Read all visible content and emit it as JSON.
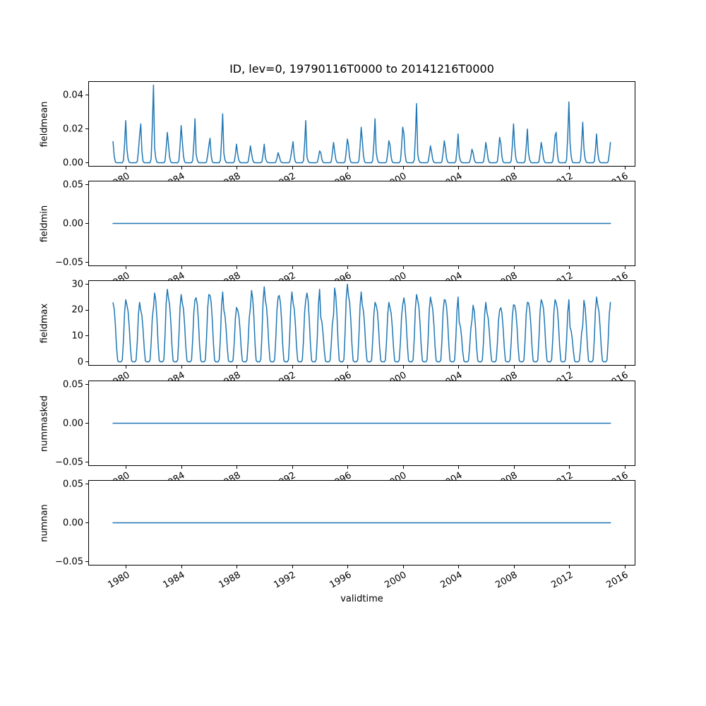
{
  "figure": {
    "title": "ID, lev=0, 19790116T0000 to 20141216T0000",
    "xlabel": "validtime",
    "line_color": "#1f77b4",
    "background": "#ffffff"
  },
  "xaxis": {
    "xlim": [
      1977.25,
      2016.76
    ],
    "ticks": [
      1980,
      1984,
      1988,
      1992,
      1996,
      2000,
      2004,
      2008,
      2012,
      2016
    ],
    "tick_labels": [
      "1980",
      "1984",
      "1988",
      "1992",
      "1996",
      "2000",
      "2004",
      "2008",
      "2012",
      "2016"
    ],
    "rotation_deg": 30
  },
  "chart_data": [
    {
      "type": "line",
      "ylabel": "fieldmean",
      "ylim": [
        -0.0023,
        0.0483
      ],
      "yticks": [
        0.0,
        0.02,
        0.04
      ],
      "ytick_labels": [
        "0.00",
        "0.02",
        "0.04"
      ],
      "x_start": 1979.04,
      "x_end": 2014.96,
      "pattern": "seasonal",
      "year_start": 1979,
      "monthly_shape": [
        0.5,
        0.15,
        0.02,
        0,
        0,
        0,
        0,
        0,
        0,
        0.05,
        0.45,
        1.0
      ],
      "annual_peaks": [
        0.025,
        0.016,
        0.046,
        0.018,
        0.022,
        0.026,
        0.01,
        0.029,
        0.011,
        0.01,
        0.011,
        0.006,
        0.008,
        0.025,
        0.007,
        0.012,
        0.014,
        0.021,
        0.026,
        0.013,
        0.021,
        0.035,
        0.01,
        0.013,
        0.017,
        0.008,
        0.012,
        0.015,
        0.023,
        0.02,
        0.012,
        0.016,
        0.036,
        0.024,
        0.017,
        0.012
      ]
    },
    {
      "type": "line",
      "ylabel": "fieldmin",
      "ylim": [
        -0.055,
        0.055
      ],
      "yticks": [
        -0.05,
        0.0,
        0.05
      ],
      "ytick_labels": [
        "−0.05",
        "0.00",
        "0.05"
      ],
      "x_start": 1979.04,
      "x_end": 2014.96,
      "pattern": "constant",
      "value": 0.0
    },
    {
      "type": "line",
      "ylabel": "fieldmax",
      "ylim": [
        -1.5,
        31.5
      ],
      "yticks": [
        0,
        10,
        20,
        30
      ],
      "ytick_labels": [
        "0",
        "10",
        "20",
        "30"
      ],
      "x_start": 1979.04,
      "x_end": 2014.96,
      "pattern": "seasonal",
      "year_start": 1979,
      "monthly_shape": [
        0.95,
        0.85,
        0.6,
        0.25,
        0.02,
        0,
        0,
        0,
        0.03,
        0.35,
        0.8,
        1.0
      ],
      "annual_peaks": [
        24,
        23,
        21,
        28,
        26,
        24,
        26,
        27,
        21,
        21,
        29,
        25,
        27,
        24,
        28,
        18,
        30,
        27,
        23,
        23,
        22,
        26,
        25,
        24,
        25,
        16,
        23,
        20,
        22,
        23,
        24,
        24,
        24,
        14,
        25,
        23
      ]
    },
    {
      "type": "line",
      "ylabel": "nummasked",
      "ylim": [
        -0.055,
        0.055
      ],
      "yticks": [
        -0.05,
        0.0,
        0.05
      ],
      "ytick_labels": [
        "−0.05",
        "0.00",
        "0.05"
      ],
      "x_start": 1979.04,
      "x_end": 2014.96,
      "pattern": "constant",
      "value": 0.0
    },
    {
      "type": "line",
      "ylabel": "numnan",
      "ylim": [
        -0.055,
        0.055
      ],
      "yticks": [
        -0.05,
        0.0,
        0.05
      ],
      "ytick_labels": [
        "−0.05",
        "0.00",
        "0.05"
      ],
      "x_start": 1979.04,
      "x_end": 2014.96,
      "pattern": "constant",
      "value": 0.0
    }
  ]
}
